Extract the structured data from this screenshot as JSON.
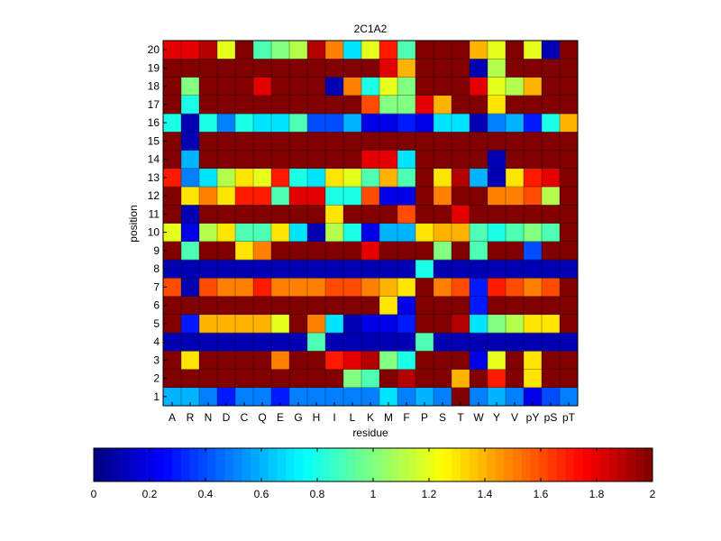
{
  "chart_data": {
    "type": "heatmap",
    "title": "2C1A2",
    "xlabel": "residue",
    "ylabel": "position",
    "x_categories": [
      "A",
      "R",
      "N",
      "D",
      "C",
      "Q",
      "E",
      "G",
      "H",
      "I",
      "L",
      "K",
      "M",
      "F",
      "P",
      "S",
      "T",
      "W",
      "Y",
      "V",
      "pY",
      "pS",
      "pT"
    ],
    "y_categories": [
      "1",
      "2",
      "3",
      "4",
      "5",
      "6",
      "7",
      "8",
      "9",
      "10",
      "11",
      "12",
      "13",
      "14",
      "15",
      "16",
      "17",
      "18",
      "19",
      "20"
    ],
    "colorbar": {
      "colormap": "jet",
      "range": [
        0,
        2
      ],
      "ticks": [
        0,
        0.2,
        0.4,
        0.6,
        0.8,
        1,
        1.2,
        1.4,
        1.6,
        1.8,
        2
      ],
      "tick_labels": [
        "0",
        "0.2",
        "0.4",
        "0.6",
        "0.8",
        "1",
        "1.2",
        "1.4",
        "1.6",
        "1.8",
        "2"
      ]
    },
    "values": [
      [
        0.6,
        0.6,
        0.5,
        0.3,
        0.5,
        0.5,
        0.3,
        0.5,
        0.5,
        0.5,
        0.5,
        0.5,
        0.7,
        0.5,
        0.6,
        0.5,
        2,
        0.5,
        0.6,
        0.5,
        0.2,
        0.4,
        0.5
      ],
      [
        2,
        2,
        2,
        2,
        2,
        2,
        2,
        2,
        2,
        2,
        1,
        0.9,
        2,
        1.9,
        2,
        2,
        1.4,
        2,
        1.7,
        2,
        1.3,
        2,
        2
      ],
      [
        2,
        1.3,
        2,
        2,
        2,
        2,
        1.5,
        2,
        2,
        1.7,
        1.8,
        1.9,
        1,
        0.8,
        2,
        2,
        2,
        0.2,
        1.2,
        2,
        1.3,
        2,
        2
      ],
      [
        0.1,
        0.1,
        0.1,
        0.1,
        0.1,
        0.1,
        0.1,
        0.1,
        0.9,
        0.1,
        0.1,
        0.1,
        0.1,
        0.1,
        0.9,
        0.1,
        0.1,
        0.1,
        0.1,
        0.1,
        0.1,
        0.1,
        0.1
      ],
      [
        2,
        0.3,
        1.4,
        1.4,
        1.4,
        1.4,
        1.2,
        2,
        1.5,
        0.7,
        0.1,
        0.2,
        0.2,
        0.3,
        2,
        2,
        1.9,
        0.7,
        1,
        1.1,
        1.3,
        1.3,
        2
      ],
      [
        2,
        2,
        2,
        2,
        2,
        2,
        2,
        2,
        2,
        2,
        2,
        2,
        1.3,
        0.2,
        2,
        2,
        2,
        0.3,
        2,
        2,
        2,
        2,
        2
      ],
      [
        1.6,
        0.1,
        1.6,
        1.5,
        1.5,
        1.7,
        1.5,
        1.5,
        1.5,
        1.6,
        1.6,
        1.5,
        1.4,
        1.3,
        2,
        1.5,
        1.6,
        0.3,
        1.7,
        1.6,
        1.5,
        1.6,
        2
      ],
      [
        0.1,
        0.1,
        0.1,
        0.1,
        0.1,
        0.1,
        0.1,
        0.1,
        0.1,
        0.1,
        0.1,
        0.1,
        0.1,
        0.1,
        0.8,
        0.1,
        0.1,
        0.1,
        0.1,
        0.1,
        0.1,
        0.1,
        0.1
      ],
      [
        2,
        0.9,
        2,
        2,
        1.3,
        1.5,
        2,
        2,
        2,
        2,
        2,
        1.8,
        2,
        2,
        2,
        1,
        2,
        0.9,
        2,
        2,
        0.4,
        2,
        2
      ],
      [
        1.2,
        0.2,
        1.1,
        1.3,
        0.9,
        0.9,
        1.3,
        0.7,
        0.1,
        1.1,
        0.8,
        0.2,
        0.6,
        0.6,
        1.3,
        1.4,
        1.4,
        0.9,
        0.8,
        0.9,
        1,
        0.9,
        2
      ],
      [
        2,
        0.1,
        2,
        2,
        2,
        2,
        2,
        2,
        2,
        1.3,
        2,
        2,
        2,
        1.6,
        2,
        2,
        1.8,
        2,
        2,
        2,
        2,
        2,
        2
      ],
      [
        2,
        1.3,
        1.5,
        1.3,
        1.7,
        1.7,
        0.9,
        1.8,
        1.8,
        0.8,
        0.8,
        1.6,
        0.2,
        0.2,
        2,
        1.5,
        2,
        2,
        1.5,
        1.5,
        1.6,
        1.1,
        2
      ],
      [
        1.7,
        0.5,
        0.7,
        1.1,
        1.3,
        1.2,
        1.7,
        0.8,
        0.7,
        1.3,
        1.2,
        0.9,
        1.4,
        0.9,
        2,
        1.3,
        1.9,
        0.6,
        0.1,
        1.3,
        1.7,
        1.8,
        2
      ],
      [
        2,
        0.6,
        2,
        2,
        2,
        2,
        2,
        2,
        2,
        2,
        2,
        1.8,
        1.8,
        0.7,
        2,
        2,
        2,
        2,
        0.1,
        2,
        2,
        2,
        2
      ],
      [
        2,
        0.1,
        2,
        2,
        2,
        2,
        2,
        2,
        2,
        2,
        2,
        2,
        2,
        2,
        2,
        2,
        2,
        2,
        2,
        2,
        2,
        2,
        2
      ],
      [
        0.8,
        0.1,
        0.8,
        0.5,
        0.8,
        0.7,
        0.7,
        0.9,
        0.4,
        0.4,
        0.6,
        0.2,
        0.2,
        0.3,
        0.2,
        0.7,
        0.7,
        0.1,
        0.5,
        0.6,
        0.3,
        0.8,
        1.4
      ],
      [
        2,
        0.8,
        2,
        2,
        2,
        2,
        2,
        2,
        2,
        2,
        2,
        1.6,
        1,
        1,
        1.8,
        1.4,
        2,
        2,
        1.3,
        2,
        2,
        2,
        2
      ],
      [
        2,
        1,
        2,
        2,
        2,
        1.8,
        2,
        2,
        2,
        0.1,
        1.5,
        0.8,
        1.2,
        1,
        2,
        2,
        2,
        1.8,
        1.2,
        1.1,
        1.4,
        2,
        2
      ],
      [
        2,
        2,
        2,
        2,
        2,
        2,
        2,
        2,
        2,
        2,
        2,
        2,
        1.8,
        1.4,
        2,
        2,
        2,
        0.1,
        1.1,
        2,
        2,
        2,
        2
      ],
      [
        1.8,
        1.8,
        1.9,
        1.2,
        2,
        0.9,
        1,
        1.1,
        1.9,
        1.5,
        0.7,
        1.2,
        1.7,
        0.9,
        2,
        2,
        2,
        1.4,
        1.2,
        2,
        1.2,
        0.1,
        2
      ]
    ]
  }
}
